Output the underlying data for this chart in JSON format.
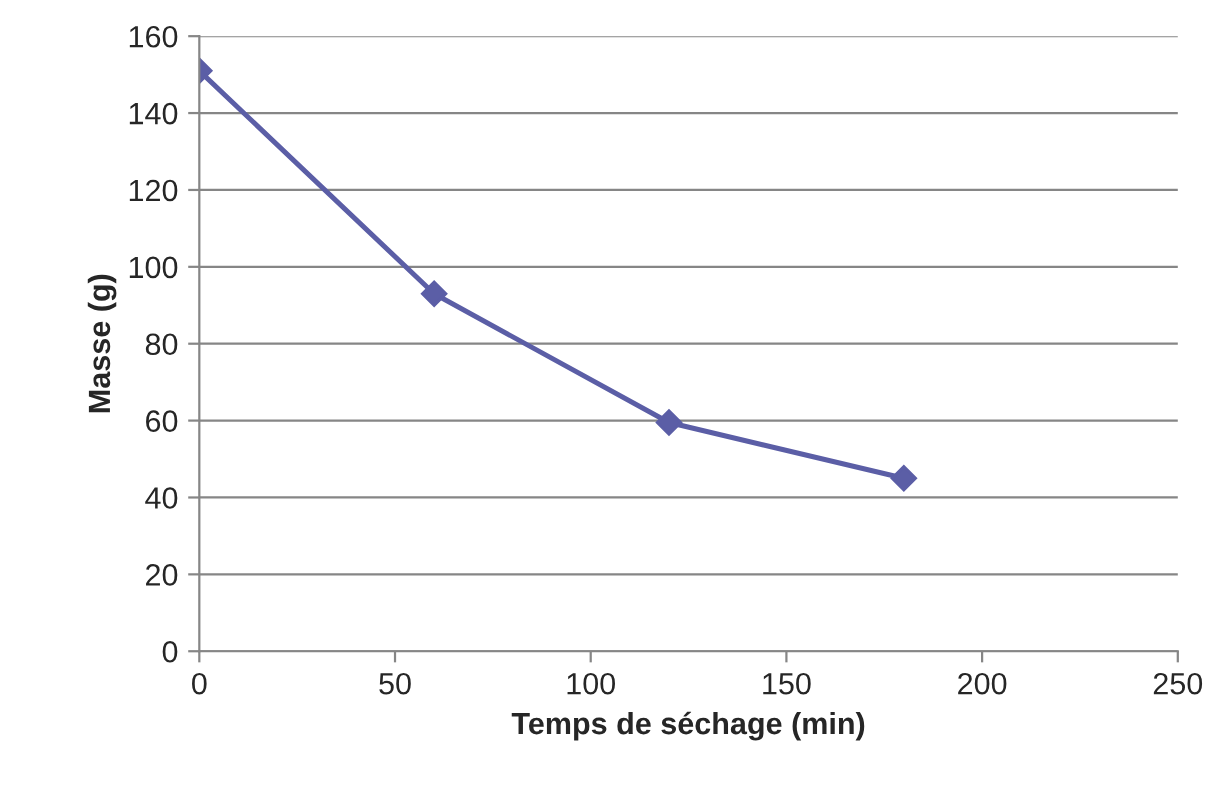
{
  "chart_data": {
    "type": "line",
    "xlabel": "Temps de séchage (min)",
    "ylabel": "Masse (g)",
    "x": [
      0,
      60,
      120,
      180
    ],
    "series": [
      {
        "color": "#5b5ea6",
        "values": [
          151,
          93,
          59.5,
          45
        ]
      }
    ],
    "xlim": [
      0,
      250
    ],
    "xticks": [
      0,
      50,
      100,
      150,
      200,
      250
    ],
    "ylim": [
      0,
      160
    ],
    "yticks": [
      0,
      20,
      40,
      60,
      80,
      100,
      120,
      140,
      160
    ],
    "grid": "y",
    "marker": "diamond",
    "line_style": "solid"
  }
}
